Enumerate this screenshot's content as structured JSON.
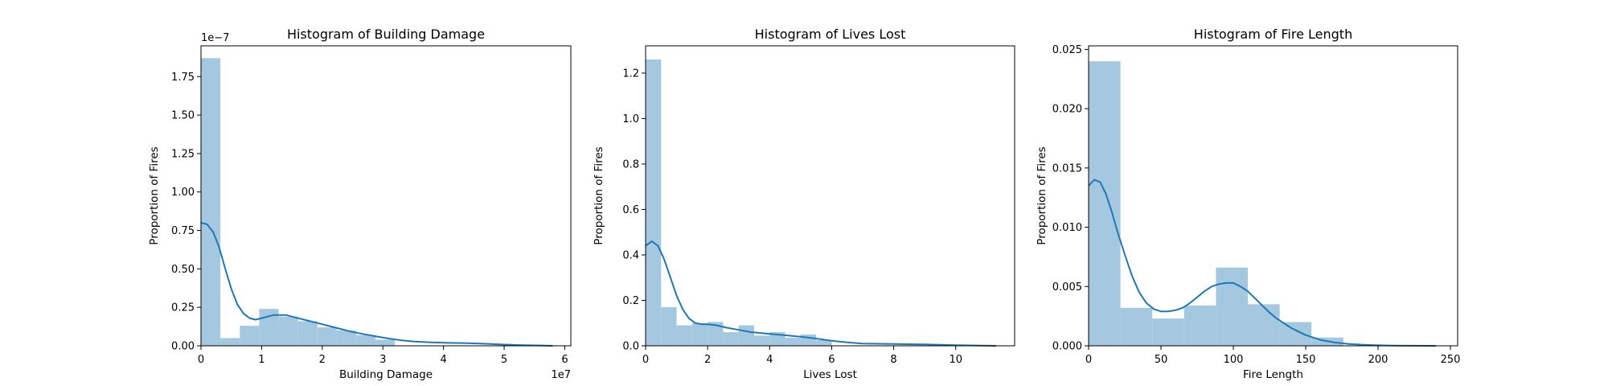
{
  "colors": {
    "bar": "#a5c8e1",
    "kde": "#1f77b4",
    "axes": "#000000"
  },
  "chart_data": [
    {
      "type": "bar",
      "title": "Histogram of Building Damage",
      "xlabel": "Building Damage",
      "ylabel": "Proportion of Fires",
      "xlim": [
        0,
        6.1
      ],
      "ylim": [
        0,
        1.95
      ],
      "x_ticks": [
        0,
        1,
        2,
        3,
        4,
        5,
        6
      ],
      "x_tick_labels": [
        "0",
        "1",
        "2",
        "3",
        "4",
        "5",
        "6"
      ],
      "y_ticks": [
        0,
        0.25,
        0.5,
        0.75,
        1.0,
        1.25,
        1.5,
        1.75
      ],
      "y_tick_labels": [
        "0.00",
        "0.25",
        "0.50",
        "0.75",
        "1.00",
        "1.25",
        "1.50",
        "1.75"
      ],
      "x_offset_label": "1e7",
      "y_offset_label": "1e−7",
      "bins": [
        {
          "x0": 0.0,
          "x1": 0.32,
          "value": 1.87
        },
        {
          "x0": 0.32,
          "x1": 0.64,
          "value": 0.05
        },
        {
          "x0": 0.64,
          "x1": 0.96,
          "value": 0.13
        },
        {
          "x0": 0.96,
          "x1": 1.28,
          "value": 0.24
        },
        {
          "x0": 1.28,
          "x1": 1.6,
          "value": 0.19
        },
        {
          "x0": 1.6,
          "x1": 1.92,
          "value": 0.16
        },
        {
          "x0": 1.92,
          "x1": 2.24,
          "value": 0.12
        },
        {
          "x0": 2.24,
          "x1": 2.56,
          "value": 0.1
        },
        {
          "x0": 2.56,
          "x1": 2.88,
          "value": 0.07
        },
        {
          "x0": 2.88,
          "x1": 3.2,
          "value": 0.04
        }
      ],
      "kde": {
        "x": [
          0,
          0.1,
          0.2,
          0.3,
          0.4,
          0.5,
          0.6,
          0.7,
          0.8,
          0.9,
          1.0,
          1.1,
          1.2,
          1.3,
          1.4,
          1.5,
          1.7,
          1.9,
          2.1,
          2.3,
          2.5,
          2.7,
          2.9,
          3.1,
          3.3,
          3.5,
          3.8,
          4.1,
          4.4,
          4.7,
          5.0,
          5.3,
          5.6,
          5.8
        ],
        "y": [
          0.8,
          0.79,
          0.74,
          0.64,
          0.5,
          0.37,
          0.27,
          0.21,
          0.18,
          0.17,
          0.18,
          0.19,
          0.2,
          0.2,
          0.2,
          0.19,
          0.17,
          0.15,
          0.13,
          0.11,
          0.09,
          0.075,
          0.06,
          0.047,
          0.036,
          0.028,
          0.022,
          0.019,
          0.017,
          0.013,
          0.008,
          0.004,
          0.002,
          0.0
        ]
      }
    },
    {
      "type": "bar",
      "title": "Histogram of Lives Lost",
      "xlabel": "Lives Lost",
      "ylabel": "Proportion of Fires",
      "xlim": [
        0,
        11.9
      ],
      "ylim": [
        0,
        1.32
      ],
      "x_ticks": [
        0,
        2,
        4,
        6,
        8,
        10
      ],
      "x_tick_labels": [
        "0",
        "2",
        "4",
        "6",
        "8",
        "10"
      ],
      "y_ticks": [
        0,
        0.2,
        0.4,
        0.6,
        0.8,
        1.0,
        1.2
      ],
      "y_tick_labels": [
        "0.0",
        "0.2",
        "0.4",
        "0.6",
        "0.8",
        "1.0",
        "1.2"
      ],
      "bins": [
        {
          "x0": 0.0,
          "x1": 0.5,
          "value": 1.26
        },
        {
          "x0": 0.5,
          "x1": 1.0,
          "value": 0.17
        },
        {
          "x0": 1.0,
          "x1": 1.5,
          "value": 0.09
        },
        {
          "x0": 1.5,
          "x1": 2.0,
          "value": 0.1
        },
        {
          "x0": 2.0,
          "x1": 2.5,
          "value": 0.105
        },
        {
          "x0": 2.5,
          "x1": 3.0,
          "value": 0.06
        },
        {
          "x0": 3.0,
          "x1": 3.5,
          "value": 0.09
        },
        {
          "x0": 3.5,
          "x1": 4.0,
          "value": 0.045
        },
        {
          "x0": 4.0,
          "x1": 4.5,
          "value": 0.06
        },
        {
          "x0": 4.5,
          "x1": 5.0,
          "value": 0.035
        },
        {
          "x0": 5.0,
          "x1": 5.5,
          "value": 0.05
        },
        {
          "x0": 5.5,
          "x1": 6.0,
          "value": 0.025
        }
      ],
      "kde": {
        "x": [
          0,
          0.2,
          0.4,
          0.6,
          0.8,
          1.0,
          1.2,
          1.4,
          1.6,
          1.8,
          2.0,
          2.3,
          2.6,
          3.0,
          3.4,
          3.8,
          4.2,
          4.6,
          5.0,
          5.5,
          6.0,
          6.5,
          7.0,
          8.0,
          9.0,
          10.0,
          11.3
        ],
        "y": [
          0.44,
          0.46,
          0.44,
          0.38,
          0.3,
          0.22,
          0.16,
          0.12,
          0.1,
          0.095,
          0.095,
          0.09,
          0.08,
          0.07,
          0.06,
          0.055,
          0.05,
          0.045,
          0.04,
          0.032,
          0.022,
          0.015,
          0.01,
          0.008,
          0.006,
          0.003,
          0.0
        ]
      }
    },
    {
      "type": "bar",
      "title": "Histogram of Fire Length",
      "xlabel": "Fire Length",
      "ylabel": "Proportion of Fires",
      "xlim": [
        0,
        255
      ],
      "ylim": [
        0,
        0.0253
      ],
      "x_ticks": [
        0,
        50,
        100,
        150,
        200,
        250
      ],
      "x_tick_labels": [
        "0",
        "50",
        "100",
        "150",
        "200",
        "250"
      ],
      "y_ticks": [
        0,
        0.005,
        0.01,
        0.015,
        0.02,
        0.025
      ],
      "y_tick_labels": [
        "0.000",
        "0.005",
        "0.010",
        "0.015",
        "0.020",
        "0.025"
      ],
      "bins": [
        {
          "x0": 0,
          "x1": 22,
          "value": 0.024
        },
        {
          "x0": 22,
          "x1": 44,
          "value": 0.0032
        },
        {
          "x0": 44,
          "x1": 66,
          "value": 0.0023
        },
        {
          "x0": 66,
          "x1": 88,
          "value": 0.0034
        },
        {
          "x0": 88,
          "x1": 110,
          "value": 0.0066
        },
        {
          "x0": 110,
          "x1": 132,
          "value": 0.0035
        },
        {
          "x0": 132,
          "x1": 154,
          "value": 0.002
        },
        {
          "x0": 154,
          "x1": 176,
          "value": 0.0007
        }
      ],
      "kde": {
        "x": [
          0,
          4,
          8,
          12,
          16,
          20,
          25,
          30,
          35,
          40,
          45,
          50,
          55,
          60,
          65,
          70,
          75,
          80,
          85,
          90,
          95,
          100,
          105,
          110,
          115,
          120,
          125,
          130,
          135,
          140,
          145,
          150,
          160,
          170,
          180,
          190,
          200,
          210,
          220,
          240
        ],
        "y": [
          0.0135,
          0.014,
          0.0138,
          0.0128,
          0.0113,
          0.0096,
          0.0077,
          0.0059,
          0.0045,
          0.0036,
          0.0031,
          0.0029,
          0.0029,
          0.003,
          0.0032,
          0.0036,
          0.0041,
          0.0046,
          0.005,
          0.0052,
          0.0053,
          0.0053,
          0.005,
          0.0046,
          0.004,
          0.0034,
          0.0028,
          0.0023,
          0.0019,
          0.0015,
          0.0012,
          0.0009,
          0.0005,
          0.00028,
          0.00015,
          8e-05,
          4e-05,
          2e-05,
          1e-05,
          0.0
        ]
      }
    }
  ]
}
